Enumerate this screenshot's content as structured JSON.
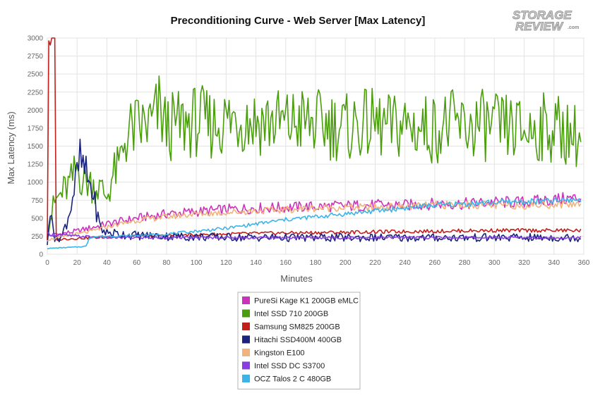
{
  "logo": {
    "line1": "STORAGE",
    "line2": "REVIEW",
    "suffix": ".com"
  },
  "chart_data": {
    "type": "line",
    "title": "Preconditioning Curve - Web Server [Max Latency]",
    "xlabel": "Minutes",
    "ylabel": "Max Latency (ms)",
    "xlim": [
      0,
      360
    ],
    "ylim": [
      0,
      3000
    ],
    "x_ticks": [
      "0",
      "20",
      "40",
      "60",
      "80",
      "100",
      "120",
      "140",
      "160",
      "180",
      "200",
      "220",
      "240",
      "260",
      "280",
      "300",
      "320",
      "340",
      "360"
    ],
    "y_ticks": [
      "0",
      "250",
      "500",
      "750",
      "1000",
      "1250",
      "1500",
      "1750",
      "2000",
      "2250",
      "2500",
      "2750",
      "3000"
    ],
    "grid": true,
    "legend_position": "bottom-center",
    "series": [
      {
        "name": "PureSi Kage K1 200GB eMLC",
        "color": "#cc33bb",
        "x": [
          0,
          20,
          40,
          60,
          80,
          100,
          120,
          140,
          160,
          180,
          200,
          220,
          240,
          260,
          280,
          300,
          320,
          340,
          358
        ],
        "y": [
          250,
          320,
          420,
          500,
          560,
          590,
          620,
          640,
          650,
          660,
          670,
          680,
          680,
          700,
          700,
          720,
          720,
          760,
          780
        ]
      },
      {
        "name": "Intel SSD 710 200GB",
        "color": "#4a9e0c",
        "x": [
          0,
          2,
          4,
          6,
          8,
          12,
          16,
          20,
          22,
          24,
          28,
          32,
          36,
          40,
          44,
          48,
          52,
          56,
          60,
          70,
          75,
          80,
          90,
          100,
          110,
          120,
          130,
          140,
          150,
          160,
          170,
          180,
          190,
          200,
          210,
          220,
          230,
          240,
          250,
          260,
          270,
          280,
          290,
          300,
          310,
          320,
          330,
          340,
          350,
          358
        ],
        "y": [
          300,
          500,
          650,
          750,
          800,
          900,
          1000,
          1200,
          1100,
          1050,
          1000,
          950,
          900,
          800,
          1100,
          1200,
          1600,
          1700,
          1750,
          1800,
          2000,
          1750,
          1800,
          1850,
          1800,
          1850,
          1900,
          1850,
          1850,
          1800,
          1850,
          1800,
          1800,
          1750,
          1800,
          1800,
          1750,
          1800,
          1750,
          1750,
          1800,
          1750,
          1800,
          1750,
          1750,
          1700,
          1750,
          1750,
          1700,
          1600
        ]
      },
      {
        "name": "Samsung SM825 200GB",
        "color": "#c0201c",
        "x": [
          0,
          1,
          2,
          3,
          4,
          5,
          6,
          10,
          20,
          40,
          60,
          80,
          100,
          140,
          180,
          220,
          260,
          300,
          340,
          358
        ],
        "y": [
          200,
          3000,
          3000,
          3000,
          3000,
          3000,
          200,
          210,
          220,
          240,
          250,
          260,
          270,
          290,
          300,
          310,
          320,
          330,
          330,
          330
        ]
      },
      {
        "name": "Hitachi SSD400M 400GB",
        "color": "#1a237e",
        "x": [
          0,
          3,
          5,
          10,
          15,
          18,
          20,
          22,
          24,
          26,
          28,
          30,
          32,
          34,
          36,
          40,
          50,
          60,
          100,
          160,
          220,
          280,
          340,
          358
        ],
        "y": [
          150,
          700,
          200,
          250,
          600,
          900,
          1100,
          1300,
          1200,
          1100,
          1000,
          900,
          700,
          500,
          350,
          300,
          280,
          260,
          240,
          230,
          230,
          230,
          230,
          230
        ]
      },
      {
        "name": "Kingston E100",
        "color": "#f2b27c",
        "x": [
          0,
          10,
          20,
          30,
          40,
          60,
          80,
          100,
          120,
          140,
          160,
          180,
          200,
          220,
          240,
          260,
          280,
          300,
          320,
          340,
          358
        ],
        "y": [
          200,
          240,
          280,
          320,
          380,
          470,
          520,
          560,
          580,
          600,
          620,
          640,
          650,
          650,
          660,
          680,
          690,
          680,
          680,
          690,
          700
        ]
      },
      {
        "name": "Intel SSD DC S3700",
        "color": "#8a3ee0",
        "x": [
          0,
          20,
          40,
          60,
          80,
          100,
          140,
          180,
          220,
          260,
          300,
          340,
          358
        ],
        "y": [
          280,
          250,
          230,
          230,
          230,
          230,
          230,
          230,
          230,
          230,
          230,
          230,
          230
        ]
      },
      {
        "name": "OCZ Talos 2 C 480GB",
        "color": "#3cb4e8",
        "x": [
          0,
          10,
          20,
          26,
          28,
          30,
          40,
          60,
          80,
          100,
          120,
          140,
          160,
          180,
          200,
          220,
          240,
          260,
          280,
          300,
          320,
          340,
          358
        ],
        "y": [
          80,
          90,
          100,
          110,
          220,
          240,
          250,
          260,
          280,
          320,
          360,
          420,
          480,
          520,
          560,
          600,
          640,
          680,
          700,
          720,
          730,
          740,
          760
        ]
      }
    ]
  }
}
